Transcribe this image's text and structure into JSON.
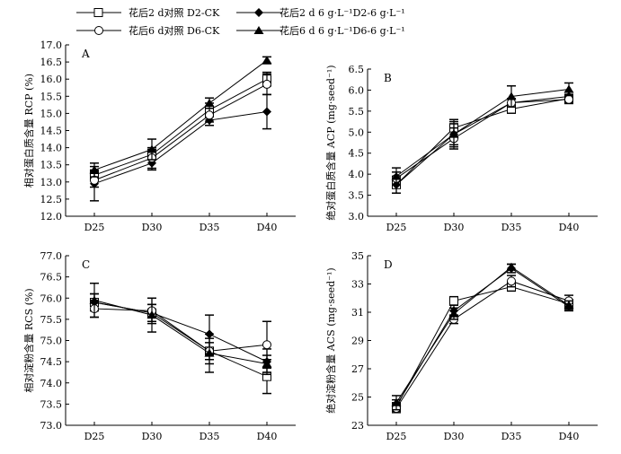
{
  "legend": [
    {
      "label": "花后2 d对照 D2-CK",
      "marker": "open-square"
    },
    {
      "label": "花后2 d 6 g·L⁻¹D2-6 g·L⁻¹",
      "marker": "filled-diamond"
    },
    {
      "label": "花后6 d对照 D6-CK",
      "marker": "open-circle"
    },
    {
      "label": "花后6 d 6 g·L⁻¹D6-6 g·L⁻¹",
      "marker": "filled-triangle"
    }
  ],
  "chart_data": [
    {
      "panel": "A",
      "type": "line",
      "ylabel": "相对蛋白质含量 RCP (%)",
      "categories": [
        "D25",
        "D30",
        "D35",
        "D40"
      ],
      "ylim": [
        12.0,
        17.0
      ],
      "yticks": [
        "12.0",
        "12.5",
        "13.0",
        "13.5",
        "14.0",
        "14.5",
        "15.0",
        "15.5",
        "16.0",
        "16.5",
        "17.0"
      ],
      "series": [
        {
          "name": "D2-CK",
          "marker": "open-square",
          "values": [
            13.2,
            13.8,
            15.1,
            16.0
          ],
          "errors": [
            0.15,
            0.15,
            0.2,
            0.2
          ]
        },
        {
          "name": "D2-6",
          "marker": "filled-diamond",
          "values": [
            12.95,
            13.55,
            14.8,
            15.05
          ],
          "errors": [
            0.5,
            0.2,
            0.15,
            0.5
          ]
        },
        {
          "name": "D6-CK",
          "marker": "open-circle",
          "values": [
            13.05,
            13.7,
            14.95,
            15.85
          ],
          "errors": [
            0.2,
            0.3,
            0.2,
            0.3
          ]
        },
        {
          "name": "D6-6",
          "marker": "filled-triangle",
          "values": [
            13.35,
            13.95,
            15.3,
            16.55
          ],
          "errors": [
            0.2,
            0.3,
            0.15,
            0.1
          ]
        }
      ]
    },
    {
      "panel": "B",
      "type": "line",
      "ylabel": "绝对蛋白质含量 ACP (mg·seed⁻¹)",
      "categories": [
        "D25",
        "D30",
        "D35",
        "D40"
      ],
      "ylim": [
        3.0,
        6.5
      ],
      "yticks": [
        "3.0",
        "3.5",
        "4.0",
        "4.5",
        "5.0",
        "5.5",
        "6.0",
        "6.5"
      ],
      "series": [
        {
          "name": "D2-CK",
          "marker": "open-square",
          "values": [
            3.75,
            5.1,
            5.55,
            5.8
          ],
          "errors": [
            0.2,
            0.2,
            0.1,
            0.1
          ]
        },
        {
          "name": "D2-6",
          "marker": "filled-diamond",
          "values": [
            3.75,
            4.95,
            5.7,
            5.85
          ],
          "errors": [
            0.2,
            0.3,
            0.1,
            0.1
          ]
        },
        {
          "name": "D6-CK",
          "marker": "open-circle",
          "values": [
            3.9,
            4.85,
            5.7,
            5.78
          ],
          "errors": [
            0.15,
            0.25,
            0.1,
            0.1
          ]
        },
        {
          "name": "D6-6",
          "marker": "filled-triangle",
          "values": [
            3.95,
            4.95,
            5.85,
            6.02
          ],
          "errors": [
            0.2,
            0.25,
            0.25,
            0.15
          ]
        }
      ]
    },
    {
      "panel": "C",
      "type": "line",
      "ylabel": "相对淀粉含量 RCS (%)",
      "categories": [
        "D25",
        "D30",
        "D35",
        "D40"
      ],
      "ylim": [
        73.0,
        77.0
      ],
      "yticks": [
        "73.0",
        "73.5",
        "74.0",
        "74.5",
        "75.0",
        "75.5",
        "76.0",
        "76.5",
        "77.0"
      ],
      "series": [
        {
          "name": "D2-CK",
          "marker": "open-square",
          "values": [
            75.9,
            75.65,
            74.75,
            74.15
          ],
          "errors": [
            0.2,
            0.2,
            0.3,
            0.4
          ]
        },
        {
          "name": "D2-6",
          "marker": "filled-diamond",
          "values": [
            75.9,
            75.65,
            75.15,
            74.5
          ],
          "errors": [
            0.2,
            0.2,
            0.45,
            0.3
          ]
        },
        {
          "name": "D6-CK",
          "marker": "open-circle",
          "values": [
            75.75,
            75.7,
            74.75,
            74.9
          ],
          "errors": [
            0.2,
            0.3,
            0.2,
            0.55
          ]
        },
        {
          "name": "D6-6",
          "marker": "filled-triangle",
          "values": [
            75.95,
            75.6,
            74.7,
            74.45
          ],
          "errors": [
            0.4,
            0.4,
            0.45,
            0.2
          ]
        }
      ]
    },
    {
      "panel": "D",
      "type": "line",
      "ylabel": "绝对淀粉含量 ACS (mg·seed⁻¹)",
      "categories": [
        "D25",
        "D30",
        "D35",
        "D40"
      ],
      "ylim": [
        23,
        35
      ],
      "yticks": [
        "23",
        "25",
        "27",
        "29",
        "31",
        "33",
        "35"
      ],
      "series": [
        {
          "name": "D2-CK",
          "marker": "open-square",
          "values": [
            24.3,
            31.8,
            32.8,
            31.6
          ],
          "errors": [
            0.3,
            0.3,
            0.3,
            0.3
          ]
        },
        {
          "name": "D2-6",
          "marker": "filled-diamond",
          "values": [
            24.4,
            31.1,
            34.1,
            31.4
          ],
          "errors": [
            0.4,
            0.4,
            0.3,
            0.3
          ]
        },
        {
          "name": "D6-CK",
          "marker": "open-circle",
          "values": [
            24.2,
            30.5,
            33.2,
            31.8
          ],
          "errors": [
            0.3,
            0.3,
            0.4,
            0.4
          ]
        },
        {
          "name": "D6-6",
          "marker": "filled-triangle",
          "values": [
            24.6,
            30.9,
            34.2,
            31.5
          ],
          "errors": [
            0.5,
            0.4,
            0.2,
            0.3
          ]
        }
      ]
    }
  ]
}
